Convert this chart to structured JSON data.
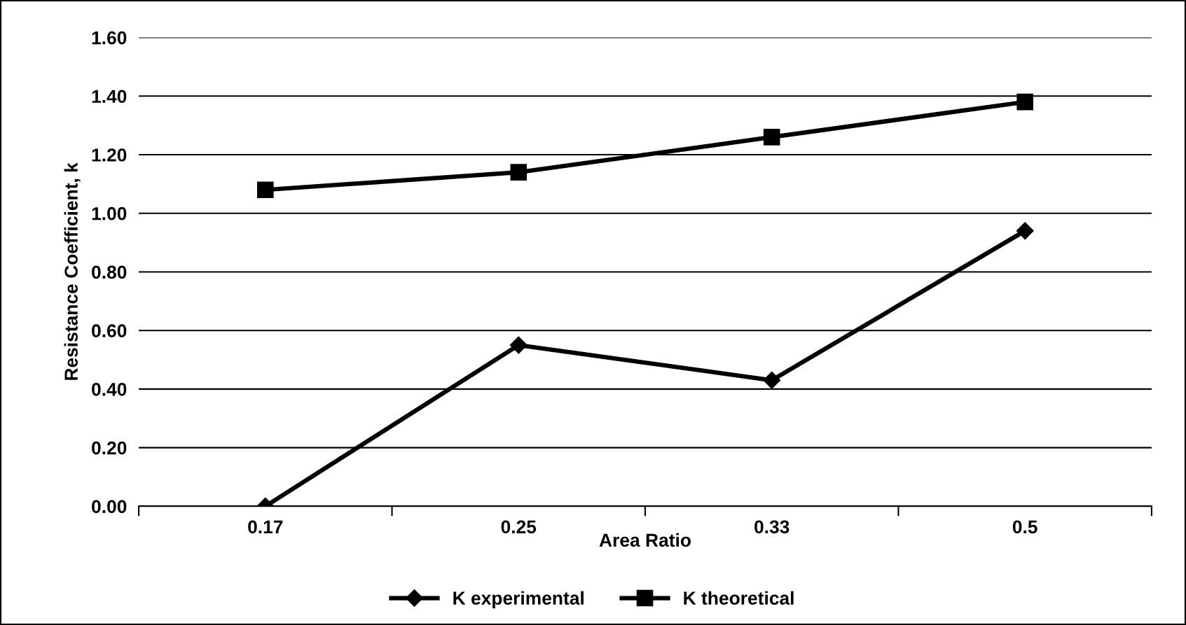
{
  "chart_data": {
    "type": "line",
    "xlabel": "Area Ratio",
    "ylabel": "Resistance Coefficient, k",
    "categories": [
      "0.17",
      "0.25",
      "0.33",
      "0.5"
    ],
    "series": [
      {
        "name": "K experimental",
        "color": "#000000",
        "marker": "diamond",
        "values": [
          0.0,
          0.55,
          0.43,
          0.94
        ]
      },
      {
        "name": "K theoretical",
        "color": "#000000",
        "marker": "square",
        "values": [
          1.08,
          1.14,
          1.26,
          1.38
        ]
      }
    ],
    "ylim": [
      0,
      1.6
    ],
    "yticks": [
      {
        "value": 0,
        "label": "0.00"
      },
      {
        "value": 0.2,
        "label": "0.20"
      },
      {
        "value": 0.4,
        "label": "0.40"
      },
      {
        "value": 0.6,
        "label": "0.60"
      },
      {
        "value": 0.8,
        "label": "0.80"
      },
      {
        "value": 1.0,
        "label": "1.00"
      },
      {
        "value": 1.2,
        "label": "1.20"
      },
      {
        "value": 1.4,
        "label": "1.40"
      },
      {
        "value": 1.6,
        "label": "1.60"
      }
    ],
    "grid": "y",
    "legend": "bottom",
    "line_style": "solid"
  }
}
